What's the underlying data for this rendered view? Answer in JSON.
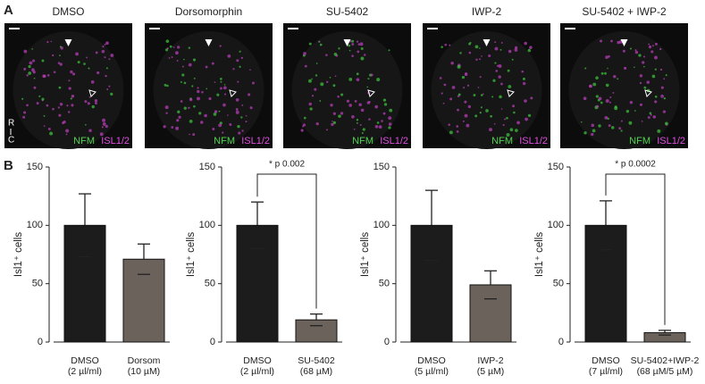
{
  "figure": {
    "panel_a_label": "A",
    "panel_b_label": "B",
    "orientation_top": "R",
    "orientation_bottom": "C",
    "images": [
      {
        "title": "DMSO",
        "green_label": "NFM",
        "magenta_label": "ISL1/2"
      },
      {
        "title": "Dorsomorphin",
        "green_label": "NFM",
        "magenta_label": "ISL1/2"
      },
      {
        "title": "SU-5402",
        "green_label": "NFM",
        "magenta_label": "ISL1/2"
      },
      {
        "title": "IWP-2",
        "green_label": "NFM",
        "magenta_label": "ISL1/2"
      },
      {
        "title": "SU-5402 + IWP-2",
        "green_label": "NFM",
        "magenta_label": "ISL1/2"
      }
    ]
  },
  "chart_data": [
    {
      "type": "bar",
      "y_label": "Isl1⁺ cells",
      "categories": [
        "DMSO\n(2 µl/ml)",
        "Dorsom\n(10 µM)"
      ],
      "values": [
        100,
        71
      ],
      "errors": [
        27,
        13
      ],
      "colors": [
        "#1c1c1c",
        "#6b625c"
      ],
      "ylim": [
        0,
        150
      ],
      "yticks": [
        0,
        50,
        100,
        150
      ]
    },
    {
      "type": "bar",
      "y_label": "Isl1⁺ cells",
      "categories": [
        "DMSO\n(2 µl/ml)",
        "SU-5402\n(68 µM)"
      ],
      "values": [
        100,
        19
      ],
      "errors": [
        20,
        5
      ],
      "colors": [
        "#1c1c1c",
        "#6b625c"
      ],
      "ylim": [
        0,
        150
      ],
      "yticks": [
        0,
        50,
        100,
        150
      ],
      "annotation": "* p 0.002"
    },
    {
      "type": "bar",
      "y_label": "Isl1⁺ cells",
      "categories": [
        "DMSO\n(5 µl/ml)",
        "IWP-2\n(5 µM)"
      ],
      "values": [
        100,
        49
      ],
      "errors": [
        30,
        12
      ],
      "colors": [
        "#1c1c1c",
        "#6b625c"
      ],
      "ylim": [
        0,
        150
      ],
      "yticks": [
        0,
        50,
        100,
        150
      ]
    },
    {
      "type": "bar",
      "y_label": "Isl1⁺ cells",
      "categories": [
        "DMSO\n(7 µl/ml)",
        "SU-5402+IWP-2\n(68 µM/5 µM)"
      ],
      "values": [
        100,
        8
      ],
      "errors": [
        21,
        2
      ],
      "colors": [
        "#1c1c1c",
        "#6b625c"
      ],
      "ylim": [
        0,
        150
      ],
      "yticks": [
        0,
        50,
        100,
        150
      ],
      "annotation": "* p 0.0002"
    }
  ]
}
